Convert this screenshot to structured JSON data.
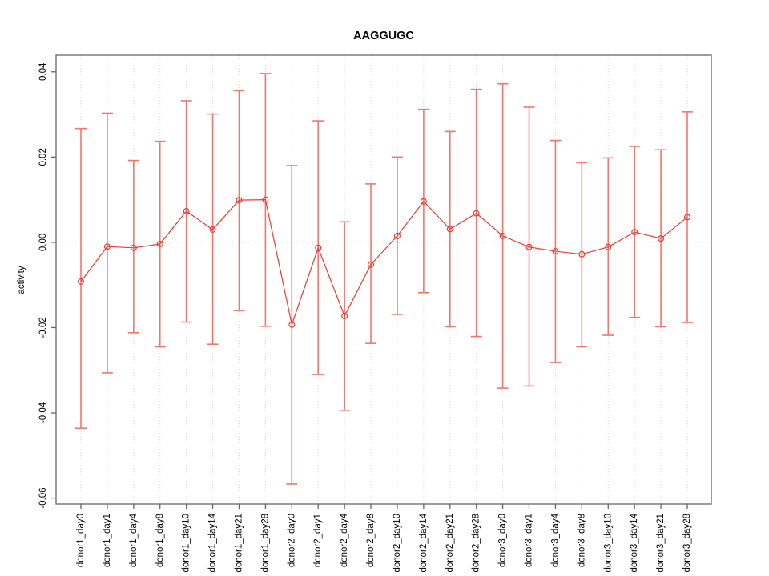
{
  "chart_data": {
    "type": "line",
    "title": "AAGGUGC",
    "xlabel": "",
    "ylabel": "activity",
    "ylim": [
      -0.0614,
      0.0439
    ],
    "y_ticks": [
      -0.06,
      -0.04,
      -0.02,
      0.0,
      0.02,
      0.04
    ],
    "y_tick_labels": [
      "-0.06",
      "-0.04",
      "-0.02",
      "0.00",
      "0.02",
      "0.04"
    ],
    "grid": "dotted vertical gridline per category plus dotted horizontal line at y=0",
    "legend": "none",
    "marker": "open-circle",
    "error_bars": true,
    "categories": [
      "donor1_day0",
      "donor1_day1",
      "donor1_day4",
      "donor1_day8",
      "donor1_day10",
      "donor1_day14",
      "donor1_day21",
      "donor1_day28",
      "donor2_day0",
      "donor2_day1",
      "donor2_day4",
      "donor2_day8",
      "donor2_day10",
      "donor2_day14",
      "donor2_day21",
      "donor2_day28",
      "donor3_day0",
      "donor3_day1",
      "donor3_day4",
      "donor3_day8",
      "donor3_day10",
      "donor3_day14",
      "donor3_day21",
      "donor3_day28"
    ],
    "series": [
      {
        "name": "activity",
        "values": [
          -0.0092,
          -0.001,
          -0.0013,
          -0.0004,
          0.0073,
          0.003,
          0.0099,
          0.01,
          -0.0193,
          -0.0013,
          -0.0173,
          -0.0052,
          0.0015,
          0.0096,
          0.0031,
          0.0068,
          0.0015,
          -0.0011,
          -0.0021,
          -0.0028,
          -0.0011,
          0.0024,
          0.0009,
          0.0059
        ],
        "lower": [
          -0.0436,
          -0.0306,
          -0.0212,
          -0.0245,
          -0.0187,
          -0.0239,
          -0.016,
          -0.0197,
          -0.0567,
          -0.031,
          -0.0394,
          -0.0237,
          -0.0169,
          -0.0118,
          -0.0198,
          -0.0221,
          -0.0342,
          -0.0337,
          -0.0282,
          -0.0245,
          -0.0218,
          -0.0176,
          -0.0198,
          -0.0188
        ],
        "upper": [
          0.0267,
          0.0303,
          0.0192,
          0.0237,
          0.0332,
          0.0301,
          0.0356,
          0.0396,
          0.018,
          0.0285,
          0.0048,
          0.0137,
          0.02,
          0.0312,
          0.026,
          0.0359,
          0.0372,
          0.0317,
          0.0239,
          0.0187,
          0.0198,
          0.0225,
          0.0217,
          0.0306
        ]
      }
    ],
    "colors": {
      "line": "#ee3a2f",
      "marker": "#ee3a2f",
      "error_bar": "#f4756b",
      "gridline": "#d8d8d8",
      "zero_line": "#c8c8c8",
      "box": "#666666",
      "text": "#000000",
      "background": "#ffffff"
    }
  }
}
